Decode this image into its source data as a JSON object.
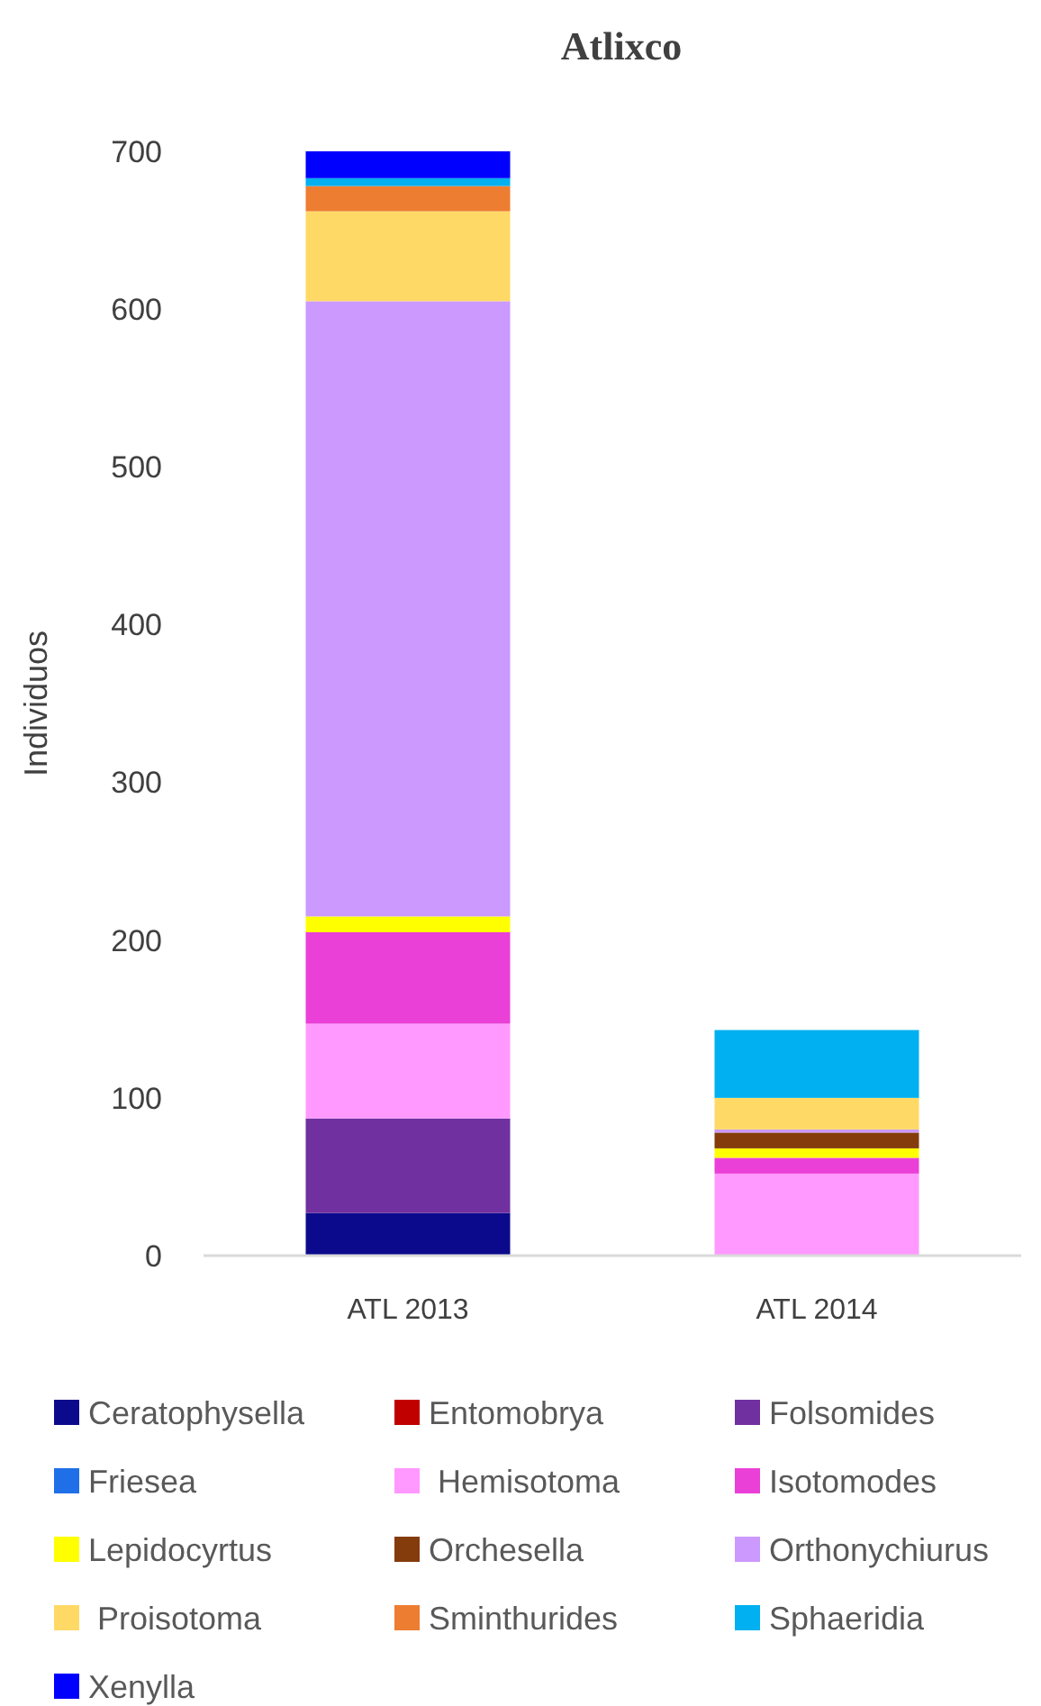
{
  "chart_data": {
    "type": "bar",
    "title": "Atlixco",
    "ylabel": "Individuos",
    "stacked": true,
    "categories": [
      "ATL 2013",
      "ATL 2014"
    ],
    "ylim": [
      0,
      700
    ],
    "yticks": [
      0,
      100,
      200,
      300,
      400,
      500,
      600,
      700
    ],
    "grid": false,
    "legend": "bottom",
    "series": [
      {
        "name": "Ceratophysella",
        "color": "#0c0a8c",
        "values": [
          27,
          0
        ]
      },
      {
        "name": "Entomobrya",
        "color": "#c00000",
        "values": [
          0,
          0
        ]
      },
      {
        "name": "Folsomides",
        "color": "#7030a0",
        "values": [
          60,
          0
        ]
      },
      {
        "name": "Friesea",
        "color": "#1f6fe8",
        "values": [
          0,
          0
        ]
      },
      {
        "name": " Hemisotoma",
        "color": "#ff99ff",
        "values": [
          60,
          52
        ]
      },
      {
        "name": "Isotomodes",
        "color": "#ea40d8",
        "values": [
          58,
          10
        ]
      },
      {
        "name": "Lepidocyrtus",
        "color": "#ffff00",
        "values": [
          10,
          6
        ]
      },
      {
        "name": "Orchesella",
        "color": "#843c0c",
        "values": [
          0,
          10
        ]
      },
      {
        "name": "Orthonychiurus",
        "color": "#cc99ff",
        "values": [
          390,
          2
        ]
      },
      {
        "name": " Proisotoma",
        "color": "#ffd966",
        "values": [
          57,
          20
        ]
      },
      {
        "name": "Sminthurides",
        "color": "#ed7d31",
        "values": [
          16,
          0
        ]
      },
      {
        "name": "Sphaeridia",
        "color": "#00b0f0",
        "values": [
          5,
          43
        ]
      },
      {
        "name": "Xenylla",
        "color": "#0000ff",
        "values": [
          17,
          0
        ]
      }
    ]
  }
}
